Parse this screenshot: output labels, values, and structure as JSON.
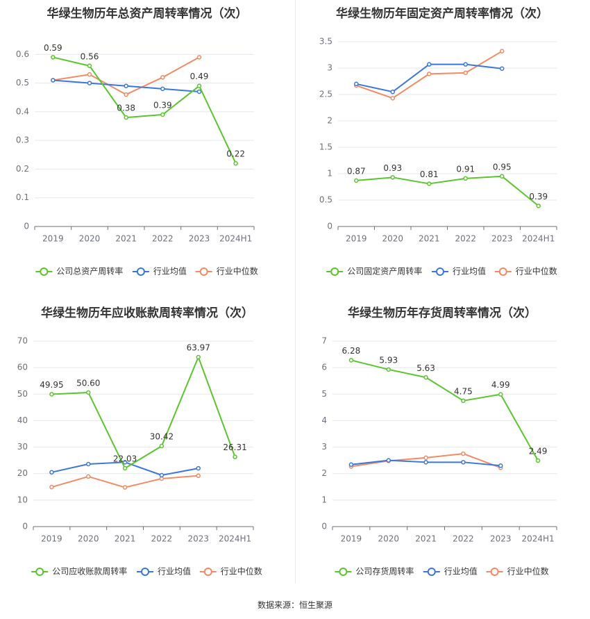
{
  "source": "数据来源：恒生聚源",
  "series_colors": {
    "company": "#5ac52c",
    "avg": "#3b77db",
    "median": "#f28a63"
  },
  "chart_data": [
    {
      "type": "line",
      "title": "华绿生物历年总资产周转率情况（次）",
      "categories": [
        "2019",
        "2020",
        "2021",
        "2022",
        "2023",
        "2024H1"
      ],
      "ylim": [
        0,
        0.7
      ],
      "yticks": [
        0,
        0.1,
        0.2,
        0.3,
        0.4,
        0.5,
        0.6
      ],
      "ytick_labels": [
        "0",
        "0.1",
        "0.2",
        "0.3",
        "0.4",
        "0.5",
        "0.6"
      ],
      "grid": true,
      "legend_position": "bottom",
      "series": [
        {
          "name": "公司总资产周转率",
          "role": "company",
          "values": [
            0.59,
            0.56,
            0.38,
            0.39,
            0.49,
            0.22
          ],
          "labels": [
            "0.59",
            "0.56",
            "0.38",
            "0.39",
            "0.49",
            "0.22"
          ]
        },
        {
          "name": "行业均值",
          "role": "avg",
          "values": [
            0.51,
            0.5,
            0.49,
            0.48,
            0.47,
            null
          ]
        },
        {
          "name": "行业中位数",
          "role": "median",
          "values": [
            0.51,
            0.53,
            0.46,
            0.52,
            0.59,
            null
          ]
        }
      ]
    },
    {
      "type": "line",
      "title": "华绿生物历年固定资产周转率情况（次）",
      "categories": [
        "2019",
        "2020",
        "2021",
        "2022",
        "2023",
        "2024H1"
      ],
      "ylim": [
        0,
        3.5
      ],
      "yticks": [
        0,
        0.5,
        1,
        1.5,
        2,
        2.5,
        3,
        3.5
      ],
      "ytick_labels": [
        "0",
        "0.5",
        "1",
        "1.5",
        "2",
        "2.5",
        "3",
        "3.5"
      ],
      "grid": true,
      "legend_position": "bottom",
      "series": [
        {
          "name": "公司固定资产周转率",
          "role": "company",
          "values": [
            0.87,
            0.93,
            0.81,
            0.91,
            0.95,
            0.39
          ],
          "labels": [
            "0.87",
            "0.93",
            "0.81",
            "0.91",
            "0.95",
            "0.39"
          ]
        },
        {
          "name": "行业均值",
          "role": "avg",
          "values": [
            2.7,
            2.55,
            3.07,
            3.07,
            2.99,
            null
          ]
        },
        {
          "name": "行业中位数",
          "role": "median",
          "values": [
            2.67,
            2.43,
            2.89,
            2.91,
            3.32,
            null
          ]
        }
      ]
    },
    {
      "type": "line",
      "title": "华绿生物历年应收账款周转率情况（次）",
      "categories": [
        "2019",
        "2020",
        "2021",
        "2022",
        "2023",
        "2024H1"
      ],
      "ylim": [
        0,
        70
      ],
      "yticks": [
        0,
        10,
        20,
        30,
        40,
        50,
        60,
        70
      ],
      "ytick_labels": [
        "0",
        "10",
        "20",
        "30",
        "40",
        "50",
        "60",
        "70"
      ],
      "grid": true,
      "legend_position": "bottom",
      "series": [
        {
          "name": "公司应收账款周转率",
          "role": "company",
          "values": [
            49.95,
            50.6,
            22.03,
            30.42,
            63.97,
            26.31
          ],
          "labels": [
            "49.95",
            "50.60",
            "22.03",
            "30.42",
            "63.97",
            "26.31"
          ]
        },
        {
          "name": "行业均值",
          "role": "avg",
          "values": [
            20.5,
            23.6,
            24.3,
            19.4,
            22.0,
            null
          ]
        },
        {
          "name": "行业中位数",
          "role": "median",
          "values": [
            14.9,
            18.9,
            14.8,
            18.1,
            19.2,
            null
          ]
        }
      ]
    },
    {
      "type": "line",
      "title": "华绿生物历年存货周转率情况（次）",
      "categories": [
        "2019",
        "2020",
        "2021",
        "2022",
        "2023",
        "2024H1"
      ],
      "ylim": [
        0,
        7
      ],
      "yticks": [
        0,
        1,
        2,
        3,
        4,
        5,
        6,
        7
      ],
      "ytick_labels": [
        "0",
        "1",
        "2",
        "3",
        "4",
        "5",
        "6",
        "7"
      ],
      "grid": true,
      "legend_position": "bottom",
      "series": [
        {
          "name": "公司存货周转率",
          "role": "company",
          "values": [
            6.28,
            5.93,
            5.63,
            4.75,
            4.99,
            2.49
          ],
          "labels": [
            "6.28",
            "5.93",
            "5.63",
            "4.75",
            "4.99",
            "2.49"
          ]
        },
        {
          "name": "行业均值",
          "role": "avg",
          "values": [
            2.34,
            2.5,
            2.43,
            2.43,
            2.3,
            null
          ]
        },
        {
          "name": "行业中位数",
          "role": "median",
          "values": [
            2.27,
            2.48,
            2.6,
            2.75,
            2.22,
            null
          ]
        }
      ]
    }
  ]
}
